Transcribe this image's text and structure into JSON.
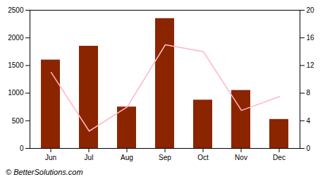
{
  "chart_data": {
    "type": "bar",
    "categories": [
      "Jun",
      "Jul",
      "Aug",
      "Sep",
      "Oct",
      "Nov",
      "Dec"
    ],
    "series": [
      {
        "type": "bar",
        "color": "#8B2500",
        "values": [
          1600,
          1850,
          750,
          2350,
          875,
          1050,
          525
        ]
      },
      {
        "type": "line",
        "color": "#FFB6C1",
        "axis": "y2",
        "values": [
          11,
          2.5,
          6,
          15,
          14,
          5.5,
          7.5
        ]
      }
    ],
    "ylim": [
      0,
      2500
    ],
    "yticks": [
      0,
      500,
      1000,
      1500,
      2000,
      2500
    ],
    "y2lim": [
      0,
      20
    ],
    "y2ticks": [
      0,
      4,
      8,
      12,
      16,
      20
    ],
    "grid": false,
    "annotations": [
      "© BetterSolutions.com"
    ]
  }
}
